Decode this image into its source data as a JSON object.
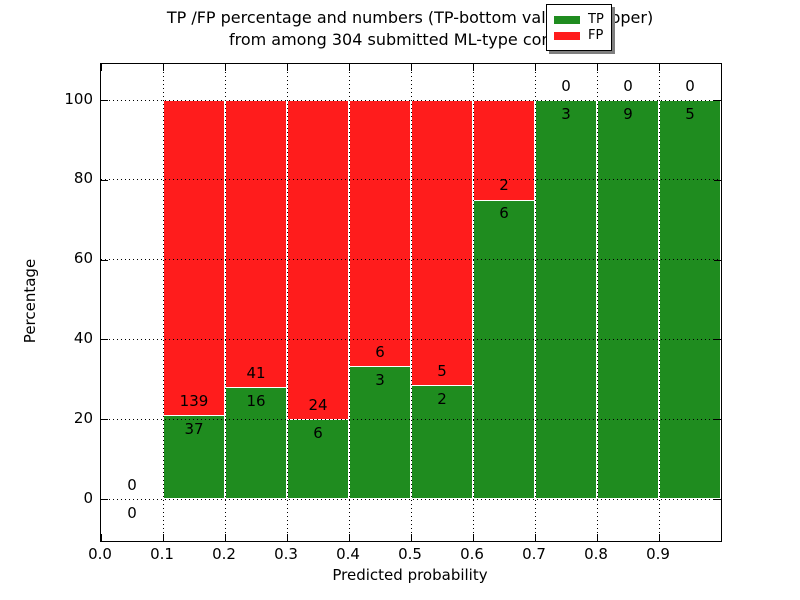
{
  "title": {
    "line1": "TP /FP percentage and numbers (TP-bottom value, FP-upper)",
    "line2": "from among 304 submitted ML-type contacts"
  },
  "axes": {
    "xlabel": "Predicted probability",
    "ylabel": "Percentage",
    "xtick_labels": [
      "0.0",
      "0.1",
      "0.2",
      "0.3",
      "0.4",
      "0.5",
      "0.6",
      "0.7",
      "0.8",
      "0.9"
    ],
    "ytick_values": [
      0,
      20,
      40,
      60,
      80,
      100
    ]
  },
  "legend": {
    "position": "upper-right",
    "entries": [
      {
        "label": "TP",
        "color": "#1f8c1f"
      },
      {
        "label": "FP",
        "color": "#ff1c1c"
      }
    ]
  },
  "colors": {
    "tp_green": "#1f8c1f",
    "fp_red": "#ff1c1c",
    "grid": "#000000",
    "background": "#ffffff"
  },
  "chart_data": {
    "type": "bar",
    "stacked": true,
    "title": "TP /FP percentage and numbers (TP-bottom value, FP-upper) from among 304 submitted ML-type contacts",
    "xlabel": "Predicted probability",
    "ylabel": "Percentage",
    "xlim": [
      0.0,
      1.0
    ],
    "ylim": [
      -10.5,
      109
    ],
    "grid": "dotted",
    "legend_position": "upper right",
    "total_contacts": 304,
    "bin_edges": [
      0.0,
      0.1,
      0.2,
      0.3,
      0.4,
      0.5,
      0.6,
      0.7,
      0.8,
      0.9,
      1.0
    ],
    "series": [
      {
        "name": "TP",
        "color": "#1f8c1f",
        "counts": [
          0,
          37,
          16,
          6,
          3,
          2,
          6,
          3,
          9,
          5
        ],
        "pct": [
          0,
          21.02,
          28.07,
          20.0,
          33.33,
          28.57,
          75.0,
          100.0,
          100.0,
          100.0
        ]
      },
      {
        "name": "FP",
        "color": "#ff1c1c",
        "counts": [
          0,
          139,
          41,
          24,
          6,
          5,
          2,
          0,
          0,
          0
        ],
        "pct": [
          0,
          78.98,
          71.93,
          80.0,
          66.67,
          71.43,
          25.0,
          0.0,
          0.0,
          0.0
        ]
      }
    ]
  }
}
